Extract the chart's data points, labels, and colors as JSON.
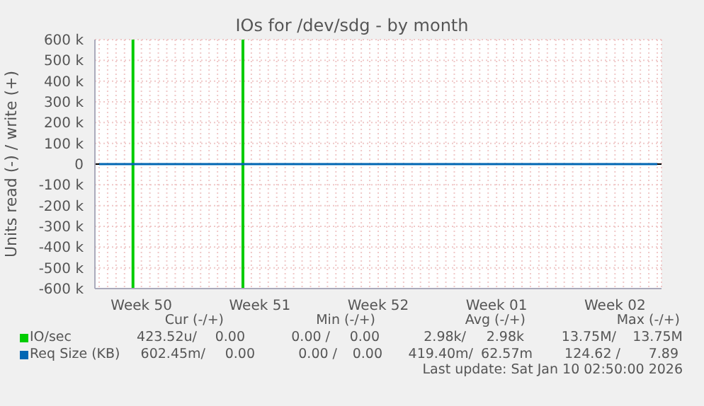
{
  "chart_data": {
    "type": "line",
    "title": "IOs for /dev/sdg - by month",
    "ylabel": "Units read (-) / write (+)",
    "categories": [
      null,
      null,
      null,
      null,
      null,
      "Week 50",
      null,
      null,
      null,
      null,
      null,
      null,
      null,
      null,
      null,
      null,
      null,
      null,
      null,
      "Week 51",
      null,
      null,
      null,
      null,
      null,
      null,
      null,
      null,
      null,
      null,
      null,
      null,
      null,
      "Week 52",
      null,
      null,
      null,
      null,
      null,
      null,
      null,
      null,
      null,
      null,
      null,
      null,
      null,
      "Week 01",
      null,
      null,
      null,
      null,
      null,
      null,
      null,
      null,
      null,
      null,
      null,
      null,
      null,
      "Week 02",
      null,
      null,
      null,
      null,
      null
    ],
    "ylim": [
      -600000,
      600000
    ],
    "yticks": [
      {
        "value": -600000,
        "label": "-600 k"
      },
      {
        "value": -500000,
        "label": "-500 k"
      },
      {
        "value": -400000,
        "label": "-400 k"
      },
      {
        "value": -300000,
        "label": "-300 k"
      },
      {
        "value": -200000,
        "label": "-200 k"
      },
      {
        "value": -100000,
        "label": "-100 k"
      },
      0,
      {
        "value": 100000,
        "label": "100 k"
      },
      {
        "value": 200000,
        "label": "200 k"
      },
      {
        "value": 300000,
        "label": "300 k"
      },
      {
        "value": 400000,
        "label": "400 k"
      },
      {
        "value": 500000,
        "label": "500 k"
      },
      {
        "value": 600000,
        "label": "600 k"
      }
    ],
    "grid": true,
    "legend": "bottom",
    "marker": "none",
    "stacked": true,
    "series": [
      {
        "name": "IO/sec",
        "type": "bar",
        "color": "#00cc00",
        "values": [
          null,
          null,
          null,
          null,
          600000,
          null,
          null,
          null,
          null,
          null,
          null,
          null,
          null,
          null,
          null,
          null,
          null,
          600000,
          null,
          null,
          null,
          null,
          null,
          null,
          null,
          null,
          null,
          null,
          null,
          null,
          null,
          null,
          null,
          null,
          null,
          null,
          null,
          null,
          null,
          null,
          null,
          null,
          null,
          null,
          null,
          null,
          null,
          null,
          null,
          null,
          null,
          null,
          null,
          null,
          null,
          null,
          null,
          null,
          null,
          null,
          null,
          null,
          null,
          null,
          null,
          null,
          null
        ]
      },
      {
        "type": "bar",
        "color": "#00cc00",
        "values": [
          null,
          null,
          null,
          null,
          -600000,
          null,
          null,
          null,
          null,
          null,
          null,
          null,
          null,
          null,
          null,
          null,
          null,
          -600000,
          null,
          null,
          null,
          null,
          null,
          null,
          null,
          null,
          null,
          null,
          null,
          null,
          null,
          null,
          null,
          null,
          null,
          null,
          null,
          null,
          null,
          null,
          null,
          null,
          null,
          null,
          null,
          null,
          null,
          null,
          null,
          null,
          null,
          null,
          null,
          null,
          null,
          null,
          null,
          null,
          null,
          null,
          null,
          null,
          null,
          null,
          null,
          null,
          null
        ]
      },
      {
        "name": "Req Size (KB)",
        "color": "#0066b3",
        "values": [
          0,
          0,
          0,
          0,
          0,
          0,
          0,
          0,
          0,
          0,
          0,
          0,
          0,
          0,
          0,
          0,
          0,
          0,
          0,
          0,
          0,
          0,
          0,
          0,
          0,
          0,
          0,
          0,
          0,
          0,
          0,
          0,
          0,
          0,
          0,
          0,
          0,
          0,
          0,
          0,
          0,
          0,
          0,
          0,
          0,
          0,
          0,
          0,
          0,
          0,
          0,
          0,
          0,
          0,
          0,
          0,
          0,
          0,
          0,
          0,
          0,
          0,
          0,
          0,
          0,
          0,
          0
        ]
      }
    ],
    "annotations": [
      "Cur (-/+)",
      "Min (-/+)",
      "Avg (-/+)",
      "Max (-/+)",
      "423.52u/",
      "0.00",
      "0.00 /",
      "0.00",
      "2.98k/",
      "2.98k",
      "13.75M/",
      "13.75M",
      "602.45m/",
      "0.00",
      "0.00 /",
      "0.00",
      "419.40m/",
      "62.57m",
      "124.62 /",
      "7.89",
      "Last update: Sat Jan 10 02:50:00 2026"
    ]
  }
}
